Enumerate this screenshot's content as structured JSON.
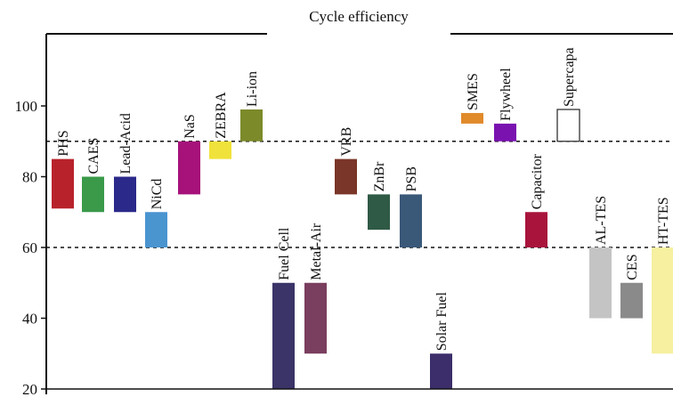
{
  "chart_data": {
    "type": "bar",
    "title": "Cycle efficiency",
    "xlabel": "",
    "ylabel": "",
    "ylim": [
      20,
      100
    ],
    "yticks": [
      20,
      40,
      60,
      80,
      100
    ],
    "reference_lines": [
      90,
      60
    ],
    "bars": [
      {
        "name": "PHS",
        "low": 71,
        "high": 85,
        "color": "#b8232b"
      },
      {
        "name": "CAES",
        "low": 70,
        "high": 80,
        "color": "#3a9a4a"
      },
      {
        "name": "Lead-Acid",
        "low": 70,
        "high": 80,
        "color": "#2b2a8a"
      },
      {
        "name": "NiCd",
        "low": 60,
        "high": 70,
        "color": "#4a94d0"
      },
      {
        "name": "NaS",
        "low": 75,
        "high": 90,
        "color": "#a6127a"
      },
      {
        "name": "ZEBRA",
        "low": 85,
        "high": 90,
        "color": "#f0e23a"
      },
      {
        "name": "Li-ion",
        "low": 90,
        "high": 99,
        "color": "#7c8a2a"
      },
      {
        "name": "Fuel Cell",
        "low": 20,
        "high": 50,
        "color": "#3a3468"
      },
      {
        "name": "Metal-Air",
        "low": 30,
        "high": 50,
        "color": "#7a3e5e"
      },
      {
        "name": "VRB",
        "low": 75,
        "high": 85,
        "color": "#7a3628"
      },
      {
        "name": "ZnBr",
        "low": 65,
        "high": 75,
        "color": "#2f5a45"
      },
      {
        "name": "PSB",
        "low": 60,
        "high": 75,
        "color": "#3a5878"
      },
      {
        "name": "Solar Fuel",
        "low": 20,
        "high": 30,
        "color": "#3c2e6a"
      },
      {
        "name": "SMES",
        "low": 95,
        "high": 98,
        "color": "#e08a2a"
      },
      {
        "name": "Flywheel",
        "low": 90,
        "high": 95,
        "color": "#7a12b0"
      },
      {
        "name": "Capacitor",
        "low": 60,
        "high": 70,
        "color": "#a8143c"
      },
      {
        "name": "Supercapa",
        "low": 90,
        "high": 99,
        "color": "#ffffff"
      },
      {
        "name": "AL-TES",
        "low": 40,
        "high": 60,
        "color": "#c4c4c4"
      },
      {
        "name": "CES",
        "low": 40,
        "high": 50,
        "color": "#8a8a8a"
      },
      {
        "name": "HT-TES",
        "low": 30,
        "high": 60,
        "color": "#f6f0a0"
      }
    ]
  }
}
